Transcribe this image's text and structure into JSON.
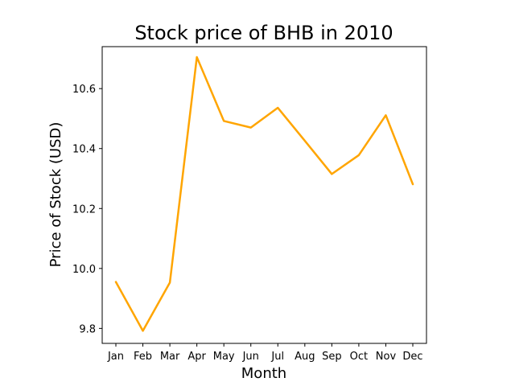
{
  "chart_data": {
    "type": "line",
    "title": "Stock price of BHB in 2010",
    "xlabel": "Month",
    "ylabel": "Price of Stock (USD)",
    "categories": [
      "Jan",
      "Feb",
      "Mar",
      "Apr",
      "May",
      "Jun",
      "Jul",
      "Aug",
      "Sep",
      "Oct",
      "Nov",
      "Dec"
    ],
    "series": [
      {
        "color": "#ffa500",
        "values": [
          9.955,
          9.792,
          9.953,
          10.705,
          10.492,
          10.47,
          10.536,
          10.426,
          10.315,
          10.378,
          10.511,
          10.281
        ]
      }
    ],
    "ylim": [
      9.75,
      10.74
    ],
    "yticks": [
      9.8,
      10.0,
      10.2,
      10.4,
      10.6
    ],
    "ytick_labels": [
      "9.8",
      "10.0",
      "10.2",
      "10.4",
      "10.6"
    ],
    "grid": false,
    "legend": "none"
  }
}
